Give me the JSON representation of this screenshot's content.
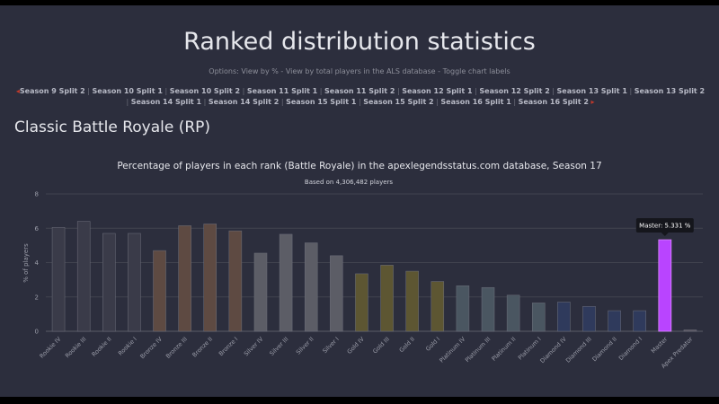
{
  "page": {
    "title": "Ranked distribution statistics",
    "options": {
      "prefix": "Options: ",
      "view_percent": "View by %",
      "separator": " - ",
      "view_total": "View by total players in the ALS database",
      "toggle_labels": "Toggle chart labels"
    },
    "seasons": {
      "arrow_left": "◂",
      "arrow_right": "▸",
      "items": [
        "Season 9 Split 2",
        "Season 10 Split 1",
        "Season 10 Split 2",
        "Season 11 Split 1",
        "Season 11 Split 2",
        "Season 12 Split 1",
        "Season 12 Split 2",
        "Season 13 Split 1",
        "Season 13 Split 2",
        "Season 14 Split 1",
        "Season 14 Split 2",
        "Season 15 Split 1",
        "Season 15 Split 2",
        "Season 16 Split 1",
        "Season 16 Split 2"
      ]
    },
    "section_title": "Classic Battle Royale (RP)"
  },
  "chart_data": {
    "type": "bar",
    "title": "Percentage of players in each rank (Battle Royale) in the apexlegendsstatus.com database, Season 17",
    "subtitle": "Based on 4,306,482 players",
    "ylabel": "% of players",
    "xlabel": "",
    "ylim": [
      0,
      8
    ],
    "yticks": [
      0,
      2,
      4,
      6,
      8
    ],
    "grid": true,
    "categories": [
      "Rookie IV",
      "Rookie III",
      "Rookie II",
      "Rookie I",
      "Bronze IV",
      "Bronze III",
      "Bronze II",
      "Bronze I",
      "Silver IV",
      "Silver III",
      "Silver II",
      "Silver I",
      "Gold IV",
      "Gold III",
      "Gold II",
      "Gold I",
      "Platinum IV",
      "Platinum III",
      "Platinum II",
      "Platinum I",
      "Diamond IV",
      "Diamond III",
      "Diamond II",
      "Diamond I",
      "Master",
      "Apex Predator"
    ],
    "values": [
      6.05,
      6.4,
      5.7,
      5.7,
      4.7,
      6.15,
      6.25,
      5.85,
      4.55,
      5.65,
      5.15,
      4.4,
      3.35,
      3.85,
      3.5,
      2.9,
      2.65,
      2.55,
      2.1,
      1.65,
      1.7,
      1.45,
      1.2,
      1.2,
      5.331,
      0.08
    ],
    "colors": [
      "#3a3b49",
      "#3a3b49",
      "#3a3b49",
      "#3a3b49",
      "#5e4a42",
      "#5e4a42",
      "#5e4a42",
      "#5e4a42",
      "#5c5d66",
      "#5c5d66",
      "#5c5d66",
      "#5c5d66",
      "#5d5632",
      "#5d5632",
      "#5d5632",
      "#5d5632",
      "#4a5661",
      "#4a5661",
      "#4a5661",
      "#4a5661",
      "#2f3a5c",
      "#2f3a5c",
      "#2f3a5c",
      "#2f3a5c",
      "#b944ff",
      "#5a5560"
    ],
    "highlighted_index": 24,
    "tooltip": "Master: 5.331 %",
    "background": "#2c2e3d",
    "grid_color": "#41434f"
  }
}
